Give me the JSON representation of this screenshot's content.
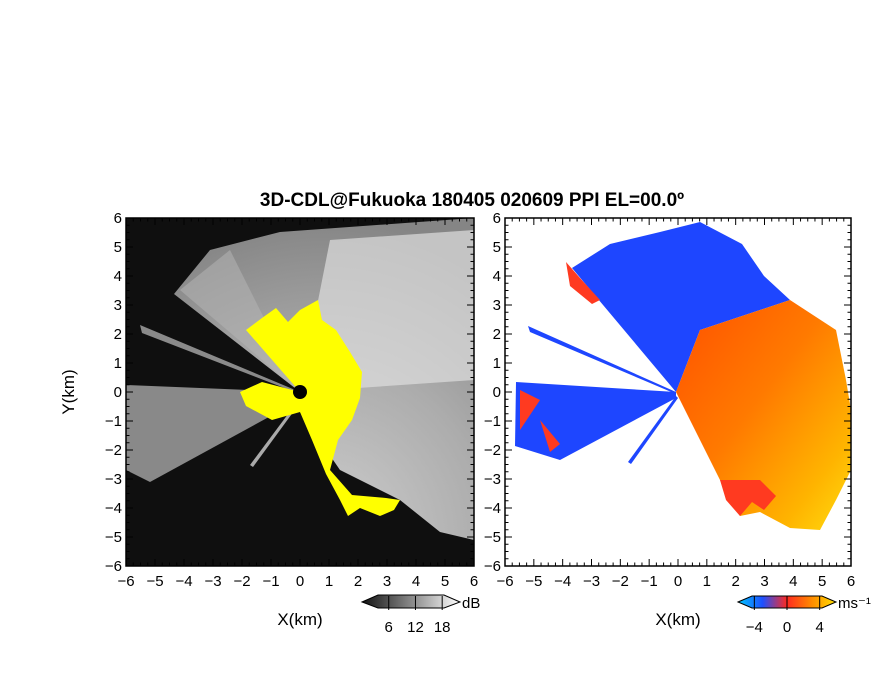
{
  "chart_data": [
    {
      "type": "heatmap",
      "panel": "reflectivity",
      "title": "3D-CDL@Fukuoka 180405 020609 PPI EL=00.0º",
      "xlabel": "X(km)",
      "ylabel": "Y(km)",
      "xlim": [
        -6,
        6
      ],
      "ylim": [
        -6,
        6
      ],
      "xticks": [
        "−6",
        "−5",
        "−4",
        "−3",
        "−2",
        "−1",
        "0",
        "1",
        "2",
        "3",
        "4",
        "5",
        "6"
      ],
      "yticks": [
        "6",
        "5",
        "4",
        "3",
        "2",
        "1",
        "0",
        "−1",
        "−2",
        "−3",
        "−4",
        "−5",
        "−6"
      ],
      "grid": false,
      "colormap": "grayscale",
      "colors": {
        "background": "#0d0d0d",
        "high": "#f4f4f4",
        "clutter": "#ffff00"
      },
      "colorbar": {
        "unit": "dB",
        "ticks": [
          "6",
          "12",
          "18"
        ],
        "range": [
          0,
          22
        ]
      }
    },
    {
      "type": "heatmap",
      "panel": "radial-velocity",
      "xlabel": "X(km)",
      "xlim": [
        -6,
        6
      ],
      "ylim": [
        -6,
        6
      ],
      "xticks": [
        "−6",
        "−5",
        "−4",
        "−3",
        "−2",
        "−1",
        "0",
        "1",
        "2",
        "3",
        "4",
        "5",
        "6"
      ],
      "yticks": [
        "6",
        "5",
        "4",
        "3",
        "2",
        "1",
        "0",
        "−1",
        "−2",
        "−3",
        "−4",
        "−5",
        "−6"
      ],
      "grid": false,
      "colormap": "diverging-blue-red-yellow",
      "colors": {
        "negative": "#1e46ff",
        "negative_edge": "#ff3a20",
        "positive": "#ff6a00",
        "positive_high": "#ffd200",
        "background": "#ffffff"
      },
      "colorbar": {
        "unit": "ms⁻¹",
        "ticks": [
          "−4",
          "0",
          "4"
        ],
        "range": [
          -6,
          6
        ]
      }
    }
  ]
}
